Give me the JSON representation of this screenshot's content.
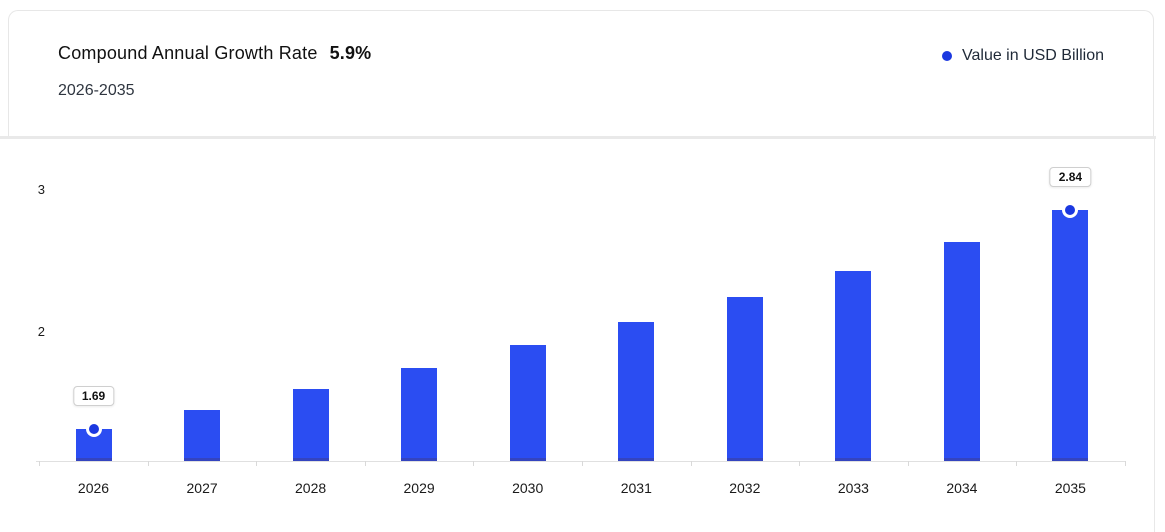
{
  "chart_data": {
    "type": "bar",
    "title": "Compound Annual Growth Rate",
    "cagr": "5.9%",
    "period": "2026-2035",
    "series_name": "Value in USD Billion",
    "unit": "USD Billion",
    "categories": [
      "2026",
      "2027",
      "2028",
      "2029",
      "2030",
      "2031",
      "2032",
      "2033",
      "2034",
      "2035"
    ],
    "values": [
      1.69,
      1.79,
      1.9,
      2.01,
      2.13,
      2.25,
      2.38,
      2.52,
      2.67,
      2.84
    ],
    "point_labels": {
      "2026": "1.69",
      "2035": "2.84"
    },
    "yticks": [
      "3",
      "2"
    ],
    "ylim": [
      1.52,
      3.06
    ],
    "grid": false,
    "legend_position": "top-right",
    "colors": {
      "bar": "#2b4df2",
      "bar_base": "#3444bf",
      "marker": "#1b38e0",
      "marker_ring": "#ffffff",
      "axis": "#e0e0e0",
      "label_box_border": "#cfcfcf"
    }
  }
}
